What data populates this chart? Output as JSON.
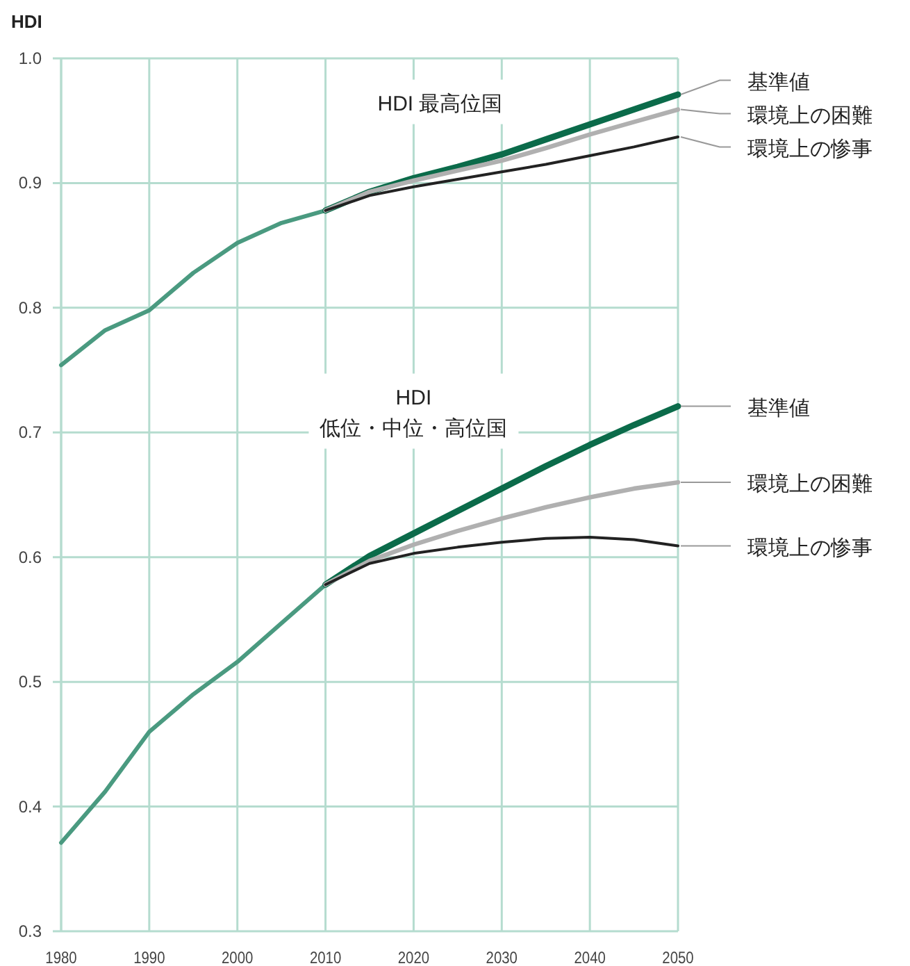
{
  "chart_data": {
    "type": "line",
    "ylabel": "HDI",
    "xlim": [
      1980,
      2050
    ],
    "xticks": [
      1980,
      1990,
      2000,
      2010,
      2020,
      2030,
      2040,
      2050
    ],
    "ylim": [
      0.3,
      1.0
    ],
    "yticks": [
      {
        "value": 0.3,
        "label": "0.3"
      },
      {
        "value": 0.4,
        "label": "0.4"
      },
      {
        "value": 0.5,
        "label": "0.5"
      },
      {
        "value": 0.6,
        "label": "0.6"
      },
      {
        "value": 0.7,
        "label": "0.7"
      },
      {
        "value": 0.8,
        "label": "0.8"
      },
      {
        "value": 0.9,
        "label": "0.9"
      },
      {
        "value": 1.0,
        "label": "1.0"
      }
    ],
    "grid": true,
    "marker": "none",
    "line_style": "solid",
    "annotations": [
      "HDI 最高位国",
      "HDI\n低位・中位・高位国"
    ],
    "series": [
      {
        "color": "#4a9a80",
        "x": [
          1980,
          1985,
          1990,
          1995,
          2000,
          2005,
          2010
        ],
        "values": [
          0.754,
          0.782,
          0.798,
          0.828,
          0.852,
          0.868,
          0.878
        ]
      },
      {
        "name": "基準値",
        "color": "#0b6b4a",
        "x": [
          2010,
          2015,
          2020,
          2025,
          2030,
          2035,
          2040,
          2045,
          2050
        ],
        "values": [
          0.878,
          0.893,
          0.904,
          0.913,
          0.923,
          0.935,
          0.947,
          0.959,
          0.971
        ]
      },
      {
        "name": "環境上の困難",
        "color": "#b0b0b0",
        "x": [
          2010,
          2015,
          2020,
          2025,
          2030,
          2035,
          2040,
          2045,
          2050
        ],
        "values": [
          0.878,
          0.893,
          0.902,
          0.91,
          0.918,
          0.928,
          0.939,
          0.949,
          0.959
        ]
      },
      {
        "name": "環境上の惨事",
        "color": "#222222",
        "x": [
          2010,
          2015,
          2020,
          2025,
          2030,
          2035,
          2040,
          2045,
          2050
        ],
        "values": [
          0.878,
          0.89,
          0.897,
          0.903,
          0.909,
          0.915,
          0.922,
          0.929,
          0.937
        ]
      },
      {
        "color": "#4a9a80",
        "x": [
          1980,
          1985,
          1990,
          1995,
          2000,
          2005,
          2010
        ],
        "values": [
          0.371,
          0.412,
          0.46,
          0.49,
          0.516,
          0.547,
          0.578
        ]
      },
      {
        "name": "基準値",
        "color": "#0b6b4a",
        "x": [
          2010,
          2015,
          2020,
          2025,
          2030,
          2035,
          2040,
          2045,
          2050
        ],
        "values": [
          0.578,
          0.601,
          0.619,
          0.637,
          0.655,
          0.673,
          0.69,
          0.706,
          0.721
        ]
      },
      {
        "name": "環境上の困難",
        "color": "#b0b0b0",
        "x": [
          2010,
          2015,
          2020,
          2025,
          2030,
          2035,
          2040,
          2045,
          2050
        ],
        "values": [
          0.578,
          0.597,
          0.61,
          0.621,
          0.631,
          0.64,
          0.648,
          0.655,
          0.66
        ]
      },
      {
        "name": "環境上の惨事",
        "color": "#222222",
        "x": [
          2010,
          2015,
          2020,
          2025,
          2030,
          2035,
          2040,
          2045,
          2050
        ],
        "values": [
          0.578,
          0.595,
          0.603,
          0.608,
          0.612,
          0.615,
          0.616,
          0.614,
          0.609
        ]
      }
    ]
  }
}
